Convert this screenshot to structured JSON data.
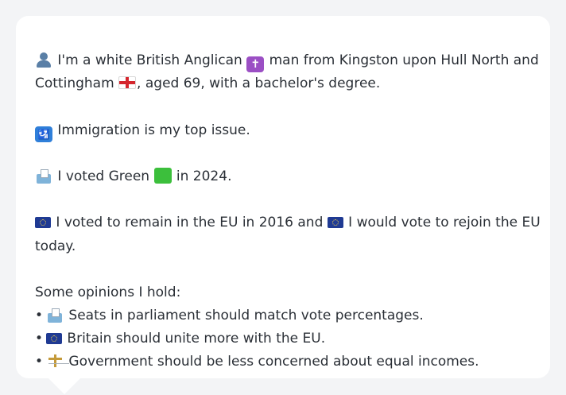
{
  "profile": {
    "line1_a": " I'm a white British Anglican ",
    "cross_glyph": "✝",
    "line1_b": " man from Kingston upon Hull North and",
    "line2_a": "Cottingham ",
    "line2_b": ", aged 69, with a bachelor's degree.",
    "issue": " Immigration is my top issue.",
    "passport_glyph": "🛂",
    "vote_a": " I voted Green ",
    "vote_b": " in 2024.",
    "eu_a": " I voted to remain in the EU in 2016 and ",
    "eu_b": " I would vote to rejoin the EU",
    "eu_c": "today."
  },
  "opinions": {
    "header": "Some opinions I hold:",
    "bullet": "•",
    "items": [
      {
        "text": " Seats in parliament should match vote percentages.",
        "icon": "ballot-box-icon"
      },
      {
        "text": " Britain should unite more with the EU.",
        "icon": "eu-flag-icon"
      },
      {
        "text": " Government should be less concerned about equal incomes.",
        "icon": "scales-icon"
      }
    ]
  },
  "colors": {
    "card": "#ffffff",
    "background": "#f3f4f6",
    "text": "#2a2f36",
    "green": "#3cbf3c",
    "eu_blue": "#1f3a93"
  }
}
